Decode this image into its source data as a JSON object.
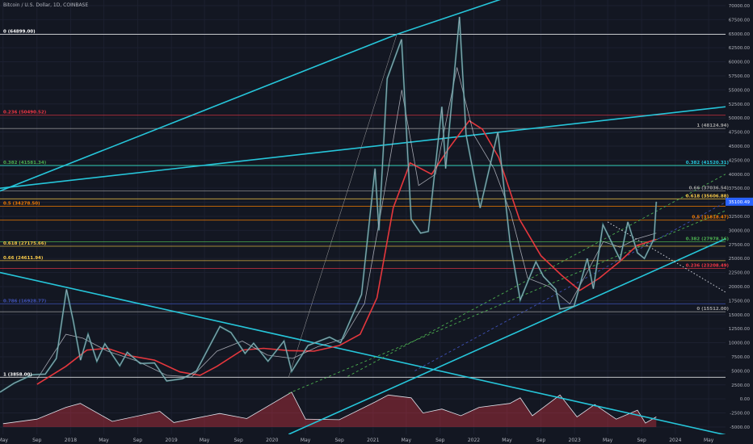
{
  "header": {
    "title": "Bitcoin / U.S. Dollar, 1D, COINBASE"
  },
  "chart_data": {
    "type": "line",
    "scale": "linear",
    "x_axis": {
      "tick_labels": [
        "May",
        "Sep",
        "2018",
        "May",
        "Sep",
        "2019",
        "May",
        "Sep",
        "2020",
        "May",
        "Sep",
        "2021",
        "May",
        "Sep",
        "2022",
        "May",
        "Sep",
        "2023",
        "May",
        "Sep",
        "2024",
        "May"
      ],
      "tick_dates": [
        "2017-05-01",
        "2017-09-01",
        "2018-01-01",
        "2018-05-01",
        "2018-09-01",
        "2019-01-01",
        "2019-05-01",
        "2019-09-01",
        "2020-01-01",
        "2020-05-01",
        "2020-09-01",
        "2021-01-01",
        "2021-05-01",
        "2021-09-01",
        "2022-01-01",
        "2022-05-01",
        "2022-09-01",
        "2023-01-01",
        "2023-05-01",
        "2023-09-01",
        "2024-01-01",
        "2024-05-01"
      ],
      "range": [
        "2017-04-20",
        "2024-07-01"
      ]
    },
    "y_axis": {
      "tick_labels": [
        "70000.00",
        "67500.00",
        "65000.00",
        "62500.00",
        "60000.00",
        "57500.00",
        "55000.00",
        "52500.00",
        "50000.00",
        "47500.00",
        "45000.00",
        "42500.00",
        "40000.00",
        "37500.00",
        "35000.00",
        "32500.00",
        "30000.00",
        "27500.00",
        "25000.00",
        "22500.00",
        "20000.00",
        "17500.00",
        "15000.00",
        "12500.00",
        "10000.00",
        "7500.00",
        "5000.00",
        "2500.00",
        "0.00",
        "-2500.00",
        "-5000.00"
      ],
      "range": [
        -6300,
        71000
      ]
    },
    "last_price": {
      "label": "35100.49",
      "value": 35100.49,
      "color": "#2962ff"
    },
    "price_series": {
      "name": "BTCUSD",
      "color": "#9aa7b4",
      "points": [
        [
          "2017-04-20",
          1200
        ],
        [
          "2017-06-10",
          2800
        ],
        [
          "2017-08-15",
          4300
        ],
        [
          "2017-10-01",
          4400
        ],
        [
          "2017-11-10",
          7200
        ],
        [
          "2017-12-17",
          19500
        ],
        [
          "2018-01-10",
          14000
        ],
        [
          "2018-02-06",
          6900
        ],
        [
          "2018-03-05",
          11500
        ],
        [
          "2018-04-06",
          6700
        ],
        [
          "2018-05-05",
          9800
        ],
        [
          "2018-06-28",
          5900
        ],
        [
          "2018-07-25",
          8300
        ],
        [
          "2018-09-10",
          6300
        ],
        [
          "2018-11-01",
          6400
        ],
        [
          "2018-12-15",
          3200
        ],
        [
          "2019-02-10",
          3600
        ],
        [
          "2019-04-02",
          5000
        ],
        [
          "2019-06-26",
          12900
        ],
        [
          "2019-08-05",
          11800
        ],
        [
          "2019-09-25",
          8100
        ],
        [
          "2019-10-26",
          9900
        ],
        [
          "2019-12-17",
          6700
        ],
        [
          "2020-02-13",
          10300
        ],
        [
          "2020-03-12",
          4900
        ],
        [
          "2020-05-10",
          9500
        ],
        [
          "2020-07-27",
          11000
        ],
        [
          "2020-09-05",
          10000
        ],
        [
          "2020-11-20",
          18600
        ],
        [
          "2021-01-08",
          41000
        ],
        [
          "2021-01-22",
          30000
        ],
        [
          "2021-02-21",
          57000
        ],
        [
          "2021-04-14",
          64000
        ],
        [
          "2021-05-19",
          32000
        ],
        [
          "2021-06-22",
          29500
        ],
        [
          "2021-07-20",
          29800
        ],
        [
          "2021-09-07",
          52000
        ],
        [
          "2021-09-21",
          41000
        ],
        [
          "2021-11-10",
          68000
        ],
        [
          "2021-12-04",
          47000
        ],
        [
          "2022-01-24",
          34000
        ],
        [
          "2022-03-29",
          47500
        ],
        [
          "2022-05-12",
          28000
        ],
        [
          "2022-06-18",
          17600
        ],
        [
          "2022-08-14",
          24400
        ],
        [
          "2022-09-10",
          21800
        ],
        [
          "2022-10-25",
          19500
        ],
        [
          "2022-11-09",
          16000
        ],
        [
          "2022-12-30",
          16500
        ],
        [
          "2023-02-16",
          25000
        ],
        [
          "2023-03-10",
          19600
        ],
        [
          "2023-04-14",
          31000
        ],
        [
          "2023-06-15",
          24800
        ],
        [
          "2023-07-13",
          31500
        ],
        [
          "2023-08-17",
          26000
        ],
        [
          "2023-09-11",
          25000
        ],
        [
          "2023-10-16",
          28500
        ],
        [
          "2023-10-24",
          35100
        ]
      ]
    },
    "moving_averages": [
      {
        "color": "#e5373d",
        "points": [
          [
            "2017-09-01",
            2600
          ],
          [
            "2017-12-15",
            5800
          ],
          [
            "2018-03-01",
            8700
          ],
          [
            "2018-05-15",
            9000
          ],
          [
            "2018-08-01",
            7700
          ],
          [
            "2018-11-01",
            6900
          ],
          [
            "2019-02-01",
            4800
          ],
          [
            "2019-04-15",
            4200
          ],
          [
            "2019-06-15",
            5800
          ],
          [
            "2019-09-15",
            8700
          ],
          [
            "2019-12-01",
            9000
          ],
          [
            "2020-03-01",
            8600
          ],
          [
            "2020-06-01",
            8500
          ],
          [
            "2020-09-01",
            9500
          ],
          [
            "2020-11-15",
            11500
          ],
          [
            "2021-01-15",
            18000
          ],
          [
            "2021-03-15",
            34000
          ],
          [
            "2021-05-15",
            42000
          ],
          [
            "2021-08-01",
            40000
          ],
          [
            "2021-10-01",
            44500
          ],
          [
            "2021-12-15",
            49500
          ],
          [
            "2022-02-01",
            48000
          ],
          [
            "2022-04-01",
            43000
          ],
          [
            "2022-06-15",
            32000
          ],
          [
            "2022-09-01",
            25500
          ],
          [
            "2022-11-15",
            22000
          ],
          [
            "2023-01-20",
            19300
          ],
          [
            "2023-04-01",
            21500
          ],
          [
            "2023-06-15",
            24500
          ],
          [
            "2023-08-15",
            27300
          ],
          [
            "2023-10-24",
            28400
          ]
        ]
      },
      {
        "color": "#e0e3eb",
        "points": [
          [
            "2017-09-01",
            3500
          ],
          [
            "2017-12-15",
            11500
          ],
          [
            "2018-02-15",
            10800
          ],
          [
            "2018-05-15",
            8500
          ],
          [
            "2018-09-01",
            6700
          ],
          [
            "2018-12-15",
            4200
          ],
          [
            "2019-03-15",
            3900
          ],
          [
            "2019-06-15",
            8500
          ],
          [
            "2019-09-15",
            10300
          ],
          [
            "2019-12-15",
            7800
          ],
          [
            "2020-03-15",
            7200
          ],
          [
            "2020-06-15",
            9300
          ],
          [
            "2020-09-15",
            10700
          ],
          [
            "2020-12-01",
            17000
          ],
          [
            "2021-02-01",
            34000
          ],
          [
            "2021-04-15",
            55000
          ],
          [
            "2021-06-15",
            38000
          ],
          [
            "2021-08-15",
            40000
          ],
          [
            "2021-11-01",
            59000
          ],
          [
            "2022-01-01",
            47000
          ],
          [
            "2022-03-15",
            41000
          ],
          [
            "2022-05-15",
            33000
          ],
          [
            "2022-07-15",
            21500
          ],
          [
            "2022-10-01",
            20000
          ],
          [
            "2022-12-15",
            16900
          ],
          [
            "2023-02-15",
            22500
          ],
          [
            "2023-04-15",
            28000
          ],
          [
            "2023-06-15",
            27000
          ],
          [
            "2023-08-15",
            28500
          ],
          [
            "2023-10-24",
            29500
          ]
        ]
      }
    ],
    "horizontal_lines": [
      {
        "label": "0 (64899.00)",
        "value": 64899,
        "color": "#ffffff",
        "side": "left"
      },
      {
        "label": "0.236 (50490.52)",
        "value": 50490.52,
        "color": "#f23645",
        "side": "left"
      },
      {
        "label": "1 (48124.94)",
        "value": 48124.94,
        "color": "#9e9e9e",
        "side": "right"
      },
      {
        "label": "0.382 (41581.34)",
        "value": 41581.34,
        "color": "#4caf50",
        "side": "left"
      },
      {
        "label": "0.382 (41520.31)",
        "value": 41520.31,
        "color": "#26c6da",
        "side": "right"
      },
      {
        "label": "0.66 (37036.54)",
        "value": 37036.54,
        "color": "#9e9e9e",
        "side": "right"
      },
      {
        "label": "0.618 (35606.88)",
        "value": 35606.88,
        "color": "#f7c948",
        "side": "right"
      },
      {
        "label": "0.5 (34278.50)",
        "value": 34278.5,
        "color": "#f57c00",
        "side": "left"
      },
      {
        "label": "0.5 (31818.47)",
        "value": 31818.47,
        "color": "#f57c00",
        "side": "right"
      },
      {
        "label": "0.382 (27978.16)",
        "value": 27978.16,
        "color": "#4caf50",
        "side": "right"
      },
      {
        "label": "0.618 (27175.66)",
        "value": 27175.66,
        "color": "#f7c948",
        "side": "left"
      },
      {
        "label": "0.66 (24611.94)",
        "value": 24611.94,
        "color": "#f7c948",
        "side": "left"
      },
      {
        "label": "0.236 (23208.49)",
        "value": 23208.49,
        "color": "#f23645",
        "side": "right"
      },
      {
        "label": "0.786 (16928.77)",
        "value": 16928.77,
        "color": "#3f51b5",
        "side": "left"
      },
      {
        "label": "0 (15512.00)",
        "value": 15512,
        "color": "#9e9e9e",
        "side": "right"
      },
      {
        "label": "1 (3858.00)",
        "value": 3858,
        "color": "#ffffff",
        "side": "left"
      }
    ],
    "trend_lines": [
      {
        "color": "#26c6da",
        "style": "solid",
        "from": [
          "2017-04-20",
          37500
        ],
        "to": [
          "2024-07-01",
          52000
        ]
      },
      {
        "color": "#26c6da",
        "style": "solid",
        "from": [
          "2017-04-20",
          37000
        ],
        "to": [
          "2021-03-28",
          64899
        ]
      },
      {
        "color": "#26c6da",
        "style": "solid",
        "from": [
          "2021-03-28",
          64899
        ],
        "to": [
          "2022-06-01",
          72000
        ]
      },
      {
        "color": "#26c6da",
        "style": "solid",
        "from": [
          "2017-04-20",
          22500
        ],
        "to": [
          "2024-07-01",
          -6400
        ]
      },
      {
        "color": "#26c6da",
        "style": "solid",
        "from": [
          "2020-03-01",
          -6300
        ],
        "to": [
          "2024-07-01",
          28500
        ]
      },
      {
        "color": "#4caf50",
        "style": "dashed",
        "from": [
          "2020-03-01",
          1000
        ],
        "to": [
          "2024-07-01",
          33500
        ]
      },
      {
        "color": "#4caf50",
        "style": "dashed",
        "from": [
          "2020-10-01",
          4000
        ],
        "to": [
          "2024-07-01",
          40000
        ]
      },
      {
        "color": "#3f51b5",
        "style": "dashed",
        "from": [
          "2021-06-01",
          5000
        ],
        "to": [
          "2024-07-01",
          35000
        ]
      },
      {
        "color": "#e0e3eb",
        "style": "dotted",
        "from": [
          "2023-05-01",
          31500
        ],
        "to": [
          "2024-07-01",
          19000
        ]
      },
      {
        "color": "#9e9e9e",
        "style": "solid",
        "from": [
          "2020-03-01",
          3858
        ],
        "to": [
          "2021-03-28",
          64899
        ]
      }
    ],
    "volume_profile": {
      "color": "#f23645",
      "base": -5000,
      "points": [
        [
          "2017-05-01",
          -4400
        ],
        [
          "2017-09-01",
          -3600
        ],
        [
          "2017-12-15",
          -1500
        ],
        [
          "2018-02-05",
          -800
        ],
        [
          "2018-06-01",
          -4000
        ],
        [
          "2018-11-20",
          -2200
        ],
        [
          "2019-01-10",
          -4200
        ],
        [
          "2019-06-25",
          -2600
        ],
        [
          "2019-10-01",
          -3500
        ],
        [
          "2020-03-12",
          1200
        ],
        [
          "2020-05-01",
          -3600
        ],
        [
          "2020-09-01",
          -3700
        ],
        [
          "2021-01-10",
          -500
        ],
        [
          "2021-02-25",
          700
        ],
        [
          "2021-05-19",
          200
        ],
        [
          "2021-07-01",
          -2500
        ],
        [
          "2021-09-07",
          -1800
        ],
        [
          "2021-11-15",
          -3000
        ],
        [
          "2022-01-20",
          -1500
        ],
        [
          "2022-05-12",
          -800
        ],
        [
          "2022-06-18",
          200
        ],
        [
          "2022-08-01",
          -3000
        ],
        [
          "2022-11-09",
          700
        ],
        [
          "2023-01-10",
          -3200
        ],
        [
          "2023-03-15",
          -1000
        ],
        [
          "2023-06-01",
          -3600
        ],
        [
          "2023-08-17",
          -2000
        ],
        [
          "2023-09-15",
          -4300
        ],
        [
          "2023-10-24",
          -3200
        ]
      ]
    }
  }
}
